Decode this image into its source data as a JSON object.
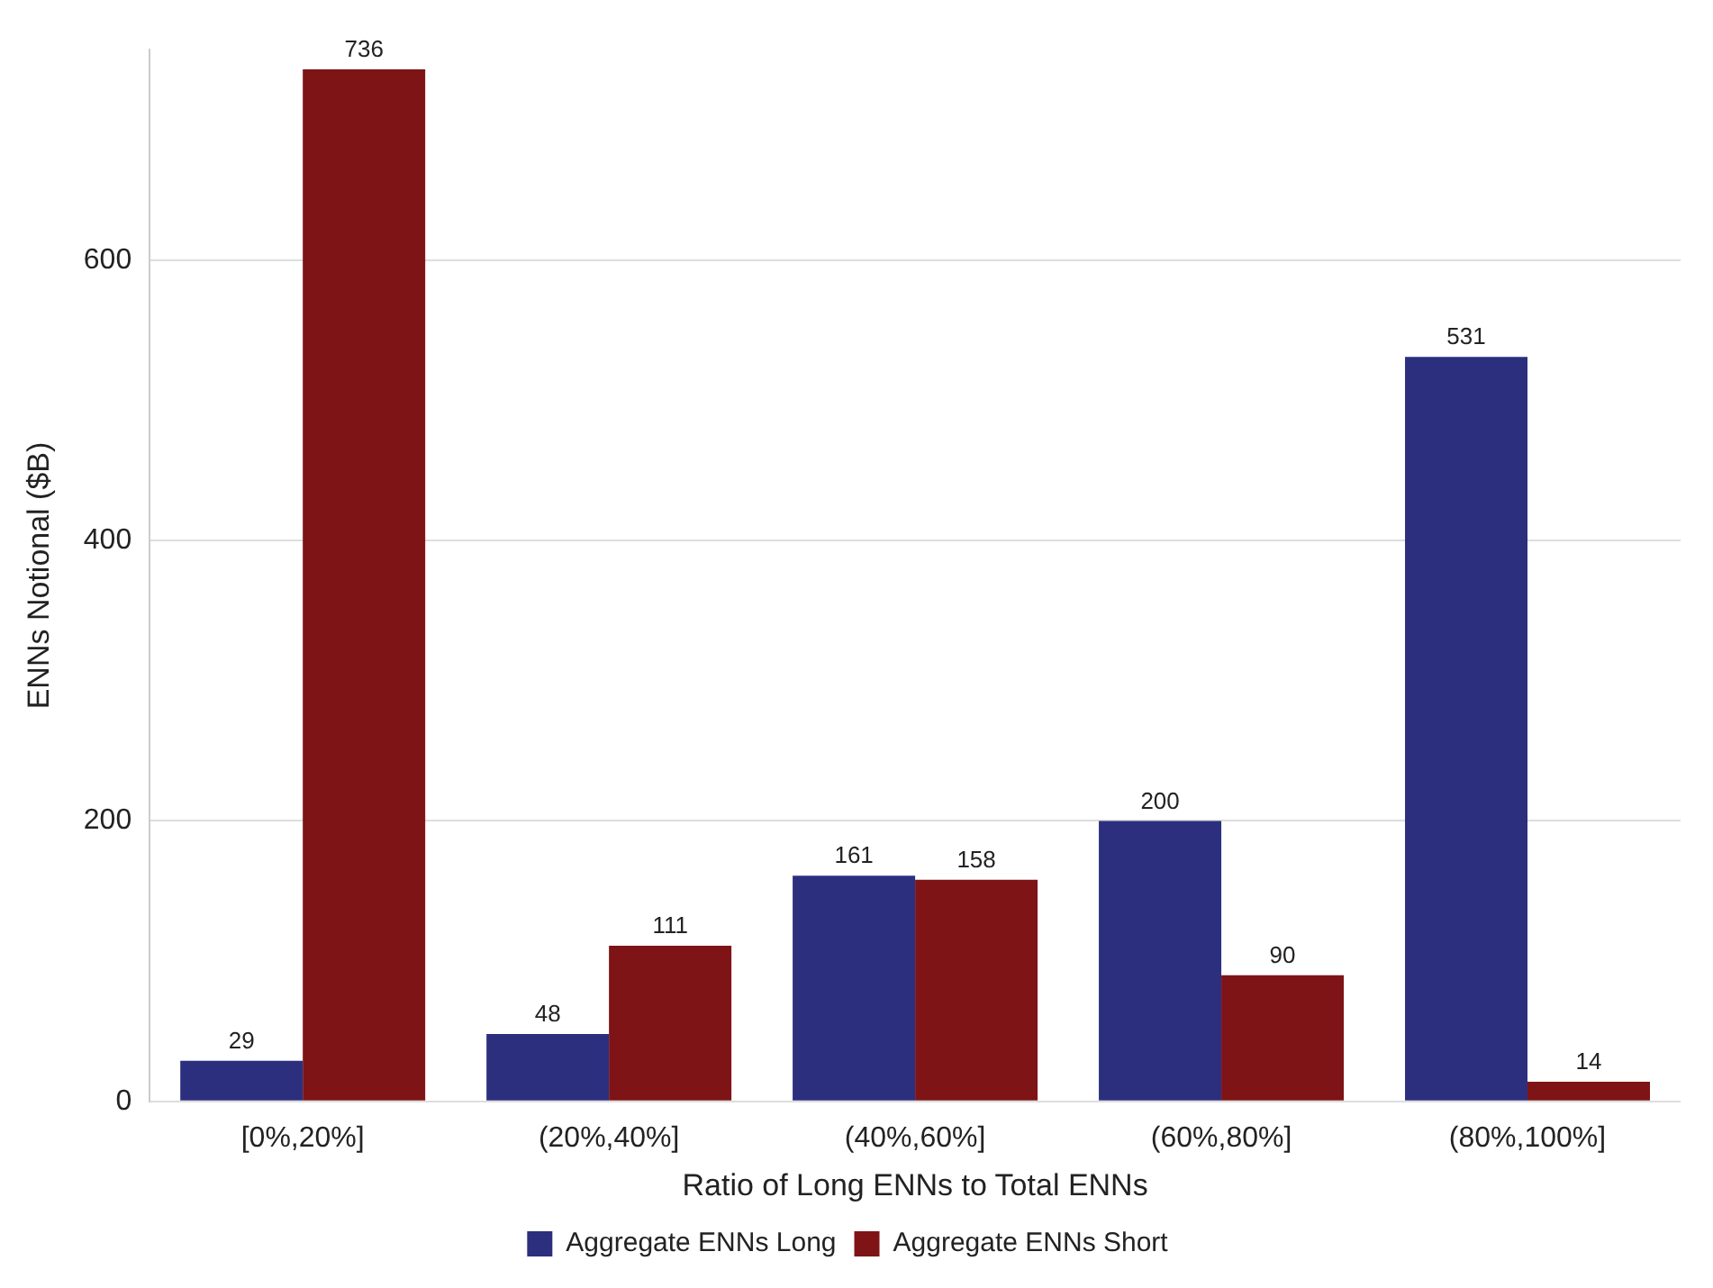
{
  "chart_data": {
    "type": "bar",
    "xlabel": "Ratio of Long ENNs to Total ENNs",
    "ylabel": "ENNs Notional ($B)",
    "categories": [
      "[0%,20%]",
      "(20%,40%]",
      "(40%,60%]",
      "(60%,80%]",
      "(80%,100%]"
    ],
    "series": [
      {
        "name": "Aggregate ENNs Long",
        "color": "#2b2f7e",
        "values": [
          29,
          48,
          161,
          200,
          531
        ]
      },
      {
        "name": "Aggregate ENNs Short",
        "color": "#7e1416",
        "values": [
          736,
          111,
          158,
          90,
          14
        ]
      }
    ],
    "ylim": [
      0,
      750
    ],
    "yticks": [
      0,
      200,
      400,
      600
    ],
    "grid": "y",
    "legend": "bottom",
    "data_labels": true
  }
}
